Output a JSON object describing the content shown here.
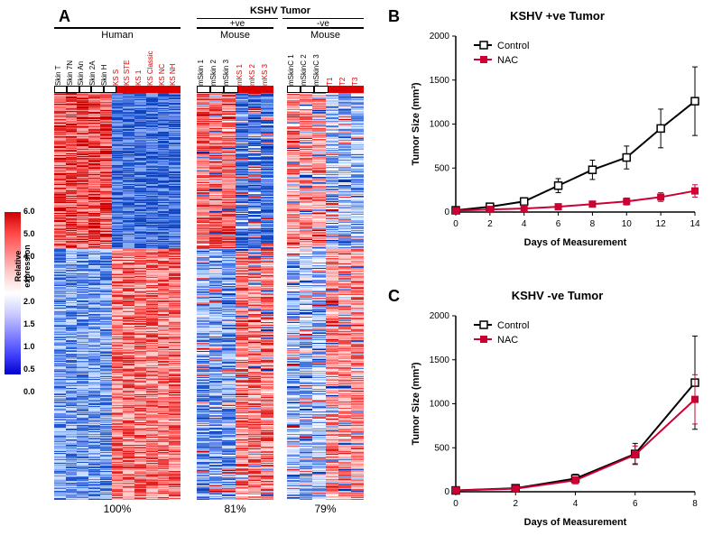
{
  "panel_labels": {
    "A": "A",
    "B": "B",
    "C": "C"
  },
  "colorbar": {
    "values": [
      "6.0",
      "5.0",
      "4.0",
      "3.0",
      "2.0",
      "1.5",
      "1.0",
      "0.5",
      "0.0"
    ],
    "title": "Relative expression",
    "gradient_top": "#cc0000",
    "gradient_bottom": "#0000cc"
  },
  "heatmap_A": {
    "top_header": "",
    "groups": {
      "human": {
        "title": "Human",
        "cols": [
          {
            "label": "Skin T",
            "color": "#000000",
            "bar": "white"
          },
          {
            "label": "Skin 7N",
            "color": "#000000",
            "bar": "white"
          },
          {
            "label": "Skin An",
            "color": "#000000",
            "bar": "white"
          },
          {
            "label": "Skin 2A",
            "color": "#000000",
            "bar": "white"
          },
          {
            "label": "Skin H",
            "color": "#000000",
            "bar": "white"
          },
          {
            "label": "KS S",
            "color": "#dd0000",
            "bar": "red"
          },
          {
            "label": "KS STE",
            "color": "#dd0000",
            "bar": "red"
          },
          {
            "label": "KS 1",
            "color": "#dd0000",
            "bar": "red"
          },
          {
            "label": "KS Classic",
            "color": "#dd0000",
            "bar": "red"
          },
          {
            "label": "KS NC",
            "color": "#dd0000",
            "bar": "red"
          },
          {
            "label": "KS NH",
            "color": "#dd0000",
            "bar": "red"
          }
        ],
        "percent": "100%"
      },
      "kshv_pos": {
        "top_header": "KSHV Tumor",
        "left_title": "+ve",
        "title": "Mouse",
        "cols": [
          {
            "label": "mSkin 1",
            "color": "#000000",
            "bar": "white"
          },
          {
            "label": "mSkin 2",
            "color": "#000000",
            "bar": "white"
          },
          {
            "label": "mSkin 3",
            "color": "#000000",
            "bar": "white"
          },
          {
            "label": "mKS 1",
            "color": "#dd0000",
            "bar": "red"
          },
          {
            "label": "mKS 2",
            "color": "#dd0000",
            "bar": "red"
          },
          {
            "label": "mKS 3",
            "color": "#dd0000",
            "bar": "red"
          }
        ],
        "percent": "81%"
      },
      "kshv_neg": {
        "left_title": "-ve",
        "title": "Mouse",
        "cols": [
          {
            "label": "mSkinC 1",
            "color": "#000000",
            "bar": "white"
          },
          {
            "label": "mSkinC 2",
            "color": "#000000",
            "bar": "white"
          },
          {
            "label": "mSkinC 3",
            "color": "#000000",
            "bar": "white"
          },
          {
            "label": "T1",
            "color": "#dd0000",
            "bar": "red"
          },
          {
            "label": "T2",
            "color": "#dd0000",
            "bar": "red"
          },
          {
            "label": "T3",
            "color": "#dd0000",
            "bar": "red"
          }
        ],
        "percent": "79%"
      }
    },
    "heatmap_colors": [
      "#0033aa",
      "#1144bb",
      "#2055cc",
      "#4477dd",
      "#6688ee",
      "#88aaee",
      "#aaccff",
      "#ccddff",
      "#eef3ff",
      "#ffffff",
      "#ffeeee",
      "#ffdddd",
      "#ffcccc",
      "#ffaaaa",
      "#ff8888",
      "#ff6666",
      "#ee4444",
      "#dd2222",
      "#cc0000"
    ]
  },
  "chart_B": {
    "title": "KSHV +ve Tumor",
    "xlabel": "Days of Measurement",
    "ylabel": "Tumor Size (mm³)",
    "xlim": [
      0,
      14
    ],
    "ylim": [
      0,
      2000
    ],
    "xtick_step": 2,
    "ytick_step": 500,
    "xticks": [
      0,
      2,
      4,
      6,
      8,
      10,
      12,
      14
    ],
    "yticks": [
      0,
      500,
      1000,
      1500,
      2000
    ],
    "series": [
      {
        "name": "Control",
        "color": "#000000",
        "marker": "square-open",
        "x": [
          0,
          2,
          4,
          6,
          8,
          10,
          12,
          14
        ],
        "y": [
          20,
          60,
          120,
          300,
          480,
          620,
          950,
          1260
        ],
        "err": [
          10,
          20,
          40,
          80,
          110,
          130,
          220,
          390
        ]
      },
      {
        "name": "NAC",
        "color": "#cc0033",
        "marker": "square-filled",
        "x": [
          0,
          2,
          4,
          6,
          8,
          10,
          12,
          14
        ],
        "y": [
          15,
          30,
          40,
          60,
          90,
          120,
          170,
          240
        ],
        "err": [
          10,
          15,
          20,
          25,
          30,
          40,
          50,
          70
        ]
      }
    ],
    "line_width": 2,
    "marker_size": 5,
    "bg_color": "#ffffff"
  },
  "chart_C": {
    "title": "KSHV -ve Tumor",
    "xlabel": "Days of Measurement",
    "ylabel": "Tumor Size (mm³)",
    "xlim": [
      0,
      8
    ],
    "ylim": [
      0,
      2000
    ],
    "xtick_step": 2,
    "ytick_step": 500,
    "xticks": [
      0,
      2,
      4,
      6,
      8
    ],
    "yticks": [
      0,
      500,
      1000,
      1500,
      2000
    ],
    "series": [
      {
        "name": "Control",
        "color": "#000000",
        "marker": "square-open",
        "x": [
          0,
          2,
          4,
          6,
          8
        ],
        "y": [
          15,
          40,
          150,
          430,
          1240
        ],
        "err": [
          10,
          20,
          50,
          120,
          530
        ]
      },
      {
        "name": "NAC",
        "color": "#cc0033",
        "marker": "square-filled",
        "x": [
          0,
          2,
          4,
          6,
          8
        ],
        "y": [
          15,
          35,
          130,
          420,
          1050
        ],
        "err": [
          10,
          20,
          40,
          100,
          280
        ]
      }
    ],
    "line_width": 2,
    "marker_size": 5,
    "bg_color": "#ffffff"
  },
  "legend": {
    "control": "Control",
    "nac": "NAC"
  }
}
